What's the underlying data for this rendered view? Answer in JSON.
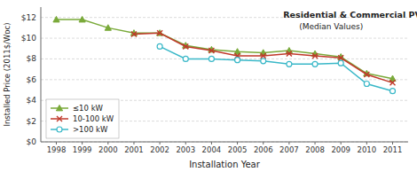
{
  "chart_data": {
    "type": "line",
    "title": "Residential & Commercial PV",
    "subtitle": "(Median Values)",
    "x_label": "Installation Year",
    "y_label": "Installed Price (2011$/Wᴅᴄ)",
    "x": [
      1998,
      1999,
      2000,
      2001,
      2002,
      2003,
      2004,
      2005,
      2006,
      2007,
      2008,
      2009,
      2010,
      2011
    ],
    "xlim": [
      1997.4,
      2011.6
    ],
    "xticks": [
      1998,
      1999,
      2000,
      2001,
      2002,
      2003,
      2004,
      2005,
      2006,
      2007,
      2008,
      2009,
      2010,
      2011
    ],
    "ylim": [
      0,
      13
    ],
    "yticks": [
      {
        "value": 0,
        "label": "$0"
      },
      {
        "value": 2,
        "label": "$2"
      },
      {
        "value": 4,
        "label": "$4"
      },
      {
        "value": 6,
        "label": "$6"
      },
      {
        "value": 8,
        "label": "$8"
      },
      {
        "value": 10,
        "label": "$10"
      },
      {
        "value": 12,
        "label": "$12"
      }
    ],
    "grid": true,
    "legend": "lower left",
    "series": [
      {
        "name": "≤10 kW",
        "color": "#7aaa3a",
        "marker": "triangle",
        "values": [
          11.8,
          11.8,
          11.0,
          10.5,
          10.5,
          9.3,
          8.9,
          8.7,
          8.6,
          8.8,
          8.5,
          8.2,
          6.6,
          6.1
        ]
      },
      {
        "name": "10-100 kW",
        "color": "#c0392b",
        "marker": "x",
        "values": [
          null,
          null,
          null,
          10.4,
          10.5,
          9.2,
          8.8,
          8.3,
          8.3,
          8.5,
          8.3,
          8.1,
          6.5,
          5.7
        ]
      },
      {
        "name": ">100 kW",
        "color": "#3ab8c8",
        "marker": "circle",
        "values": [
          null,
          null,
          null,
          null,
          9.2,
          8.0,
          8.0,
          7.9,
          7.8,
          7.5,
          7.5,
          7.6,
          5.6,
          4.9
        ]
      }
    ]
  }
}
